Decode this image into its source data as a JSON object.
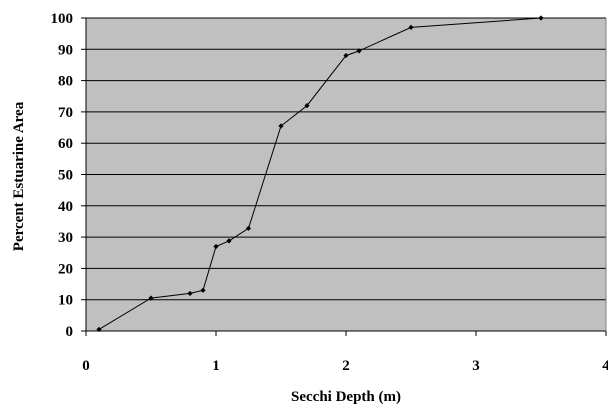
{
  "chart_data": {
    "type": "line",
    "title": "",
    "xlabel": "Secchi Depth (m)",
    "ylabel": "Percent Estuarine Area",
    "xlim": [
      0,
      4
    ],
    "ylim": [
      0,
      100
    ],
    "x_ticks": [
      "0",
      "1",
      "2",
      "3",
      "4"
    ],
    "y_ticks": [
      "0",
      "10",
      "20",
      "30",
      "40",
      "50",
      "60",
      "70",
      "80",
      "90",
      "100"
    ],
    "grid": "horizontal",
    "legend": "none",
    "plot_background": "#c0c0c0",
    "line_color": "#000000",
    "series": [
      {
        "x": [
          0.1,
          0.5,
          0.8,
          0.9,
          1.0,
          1.1,
          1.25,
          1.5,
          1.7,
          2.0,
          2.1,
          2.5,
          3.5
        ],
        "y": [
          0.5,
          10.5,
          12,
          13,
          27,
          28.8,
          32.8,
          65.5,
          72,
          88,
          89.5,
          97,
          100
        ]
      }
    ]
  }
}
